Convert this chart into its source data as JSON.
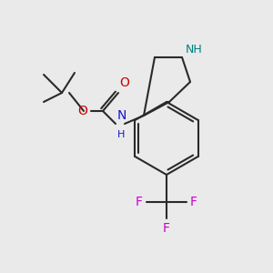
{
  "bg_color": "#eaeaea",
  "bond_color": "#2a2a2a",
  "NH_ring_color": "#008080",
  "N_carb_color": "#1414cc",
  "O_color": "#cc0000",
  "F_color": "#cc00cc",
  "font_size": 9,
  "lw": 1.5,
  "fig_width": 3.0,
  "fig_height": 3.0,
  "dpi": 100,
  "xlim": [
    0,
    300
  ],
  "ylim": [
    0,
    300
  ]
}
